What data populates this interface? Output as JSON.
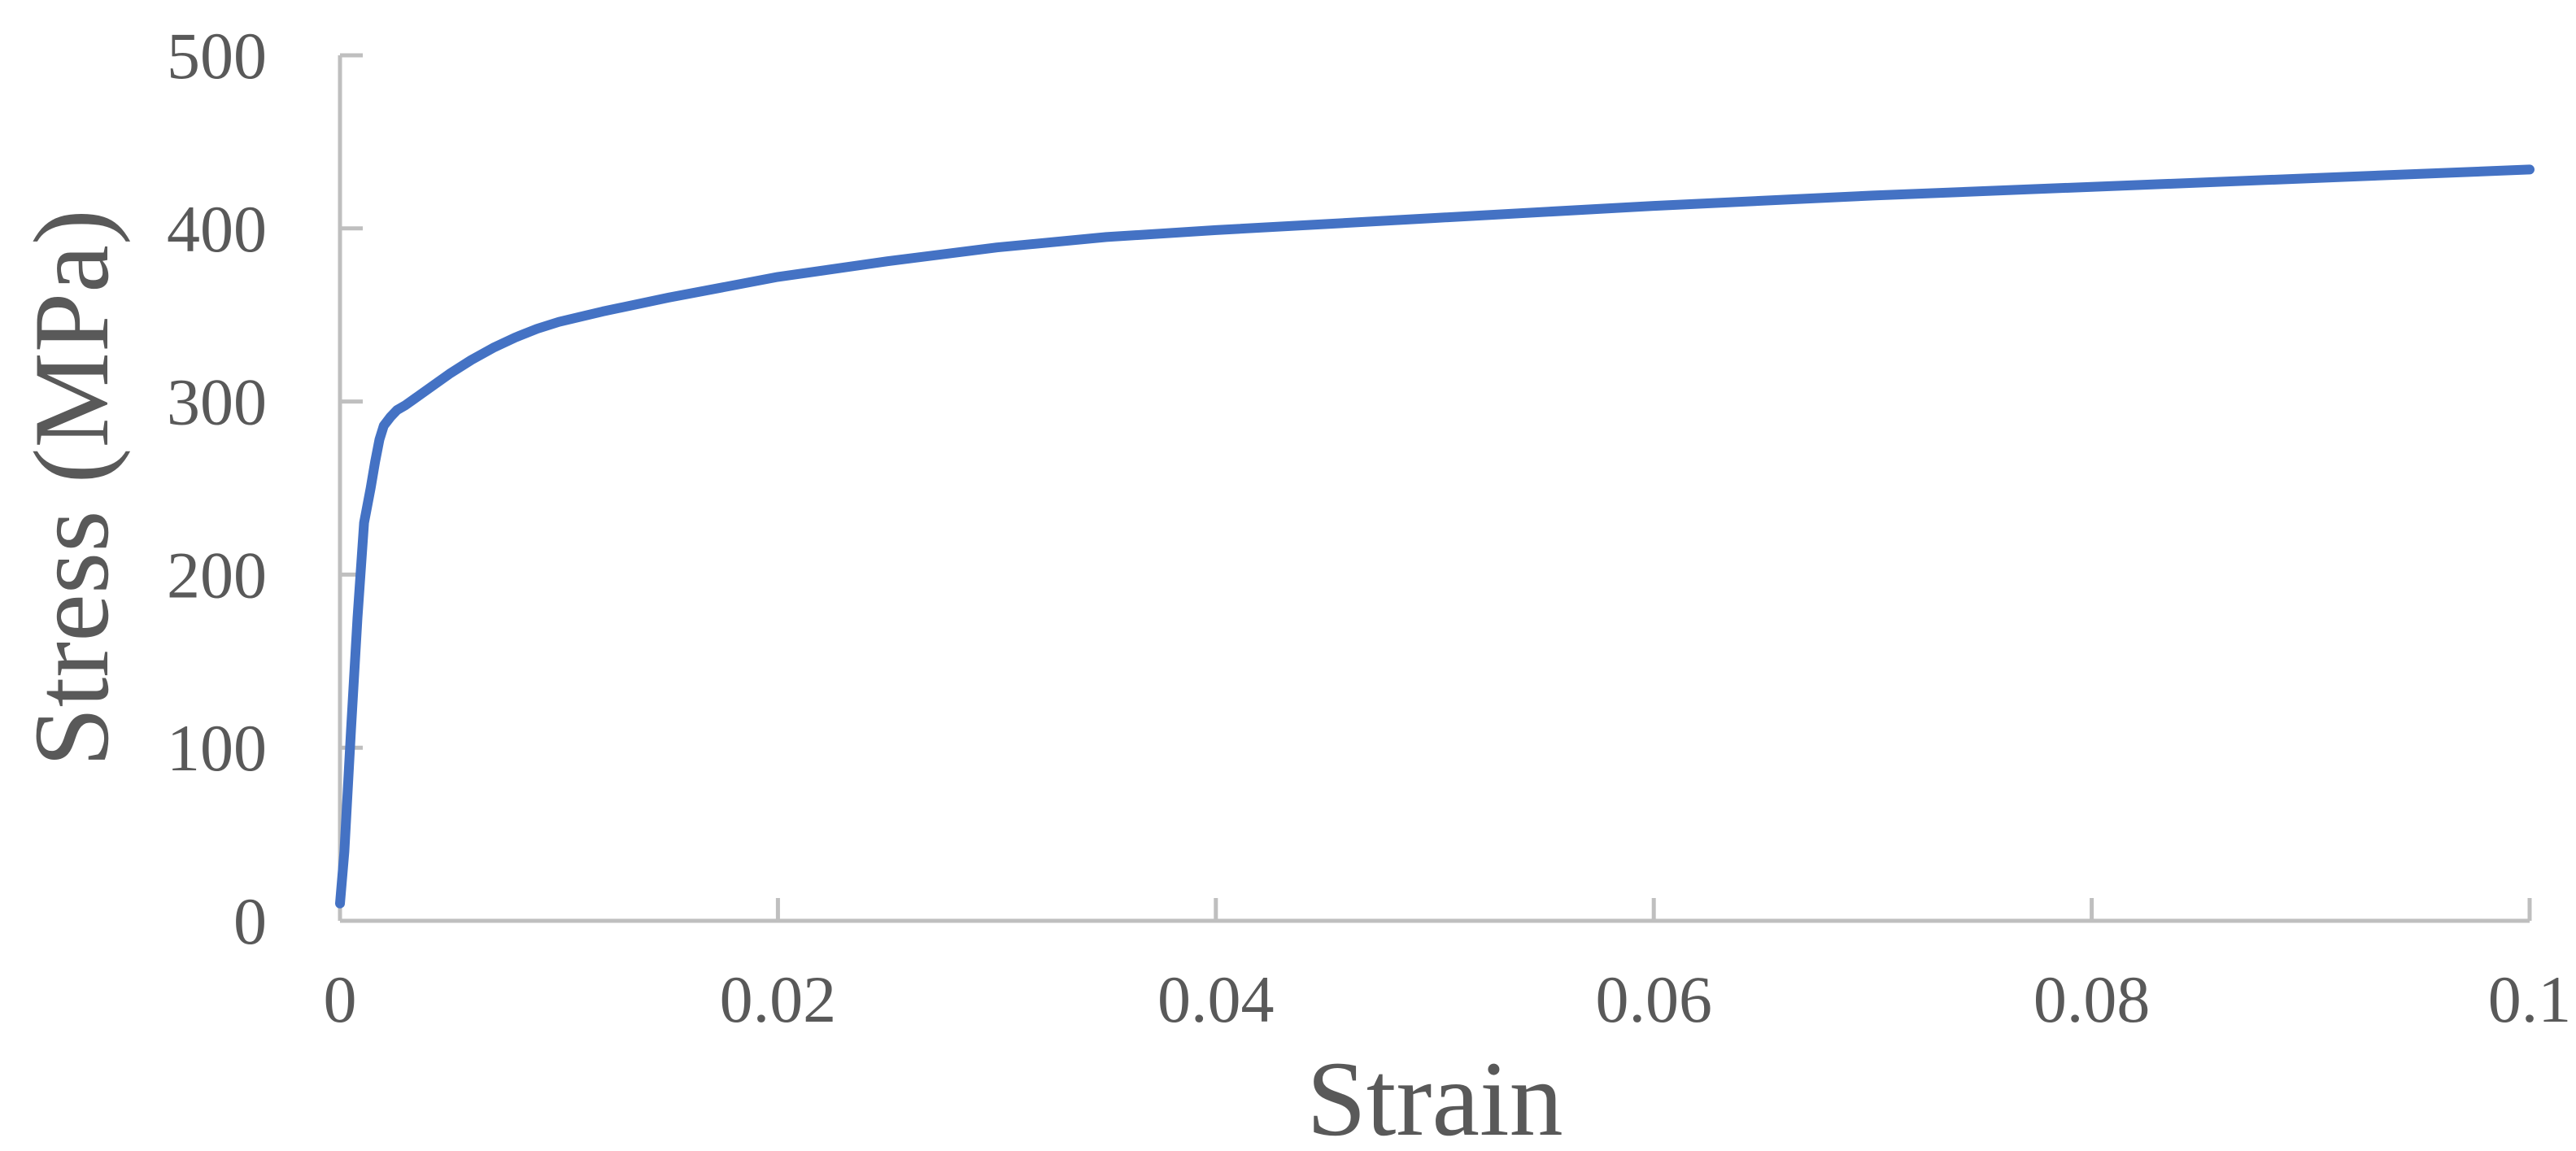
{
  "chart_data": {
    "type": "line",
    "title": "",
    "xlabel": "Strain",
    "ylabel": "Stress (MPa)",
    "xlim": [
      0,
      0.1
    ],
    "ylim": [
      0,
      500
    ],
    "x_ticks": [
      0,
      0.02,
      0.04,
      0.06,
      0.08,
      0.1
    ],
    "x_tick_labels": [
      "0",
      "0.02",
      "0.04",
      "0.06",
      "0.08",
      "0.1"
    ],
    "y_ticks": [
      0,
      100,
      200,
      300,
      400,
      500
    ],
    "y_tick_labels": [
      "0",
      "100",
      "200",
      "300",
      "400",
      "500"
    ],
    "grid": false,
    "legend": "none",
    "series": [
      {
        "color": "#4472c4",
        "x": [
          0,
          0.0002,
          0.0005,
          0.0008,
          0.0011,
          0.0014,
          0.0016,
          0.0018,
          0.002,
          0.0023,
          0.0026,
          0.003,
          0.004,
          0.005,
          0.006,
          0.007,
          0.008,
          0.009,
          0.01,
          0.012,
          0.015,
          0.02,
          0.025,
          0.03,
          0.035,
          0.04,
          0.05,
          0.06,
          0.07,
          0.08,
          0.09,
          0.1
        ],
        "y": [
          10,
          40,
          110,
          175,
          230,
          250,
          265,
          278,
          286,
          291,
          295,
          298,
          307,
          316,
          324,
          331,
          337,
          342,
          346,
          352,
          360,
          372,
          381,
          389,
          395,
          399,
          406,
          413,
          419,
          424,
          429,
          434
        ]
      }
    ]
  }
}
